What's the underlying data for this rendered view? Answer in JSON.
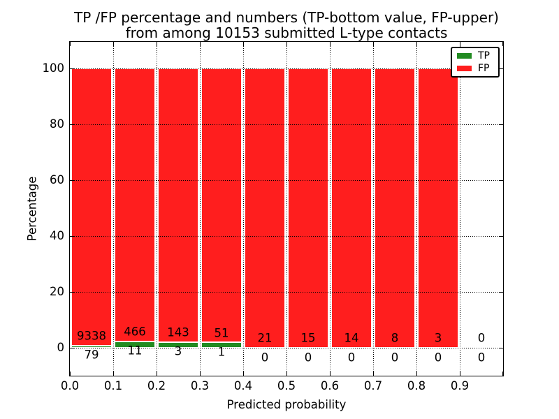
{
  "title": {
    "line1": "TP /FP percentage and numbers (TP-bottom value, FP-upper)",
    "line2": "from among 10153 submitted L-type contacts"
  },
  "axes": {
    "xlabel": "Predicted probability",
    "ylabel": "Percentage",
    "x_tick_labels": [
      "0.0",
      "0.1",
      "0.2",
      "0.3",
      "0.4",
      "0.5",
      "0.6",
      "0.7",
      "0.8",
      "0.9"
    ],
    "y_tick_labels": [
      "0",
      "20",
      "40",
      "60",
      "80",
      "100"
    ]
  },
  "chart_data": {
    "type": "bar",
    "subtype": "stacked-percentage",
    "title": "TP /FP percentage and numbers (TP-bottom value, FP-upper) from among 10153 submitted L-type contacts",
    "xlabel": "Predicted probability",
    "ylabel": "Percentage",
    "total_contacts": 10153,
    "bins": [
      "0.0-0.1",
      "0.1-0.2",
      "0.2-0.3",
      "0.3-0.4",
      "0.4-0.5",
      "0.5-0.6",
      "0.6-0.7",
      "0.7-0.8",
      "0.8-0.9",
      "0.9-1.0"
    ],
    "series": [
      {
        "name": "TP",
        "color": "#228b22",
        "values": [
          79,
          11,
          3,
          1,
          0,
          0,
          0,
          0,
          0,
          0
        ]
      },
      {
        "name": "FP",
        "color": "#ff1e1e",
        "values": [
          9338,
          466,
          143,
          51,
          21,
          15,
          14,
          8,
          3,
          0
        ]
      }
    ],
    "bar_annotation_note": "FP count printed above 0-line inside red bar, TP count printed below 0-line",
    "xlim": [
      0.0,
      1.0
    ],
    "ylim": [
      -10,
      110
    ],
    "y_ticks": [
      0,
      20,
      40,
      60,
      80,
      100
    ],
    "x_ticks": [
      0.0,
      0.1,
      0.2,
      0.3,
      0.4,
      0.5,
      0.6,
      0.7,
      0.8,
      0.9,
      1.0
    ],
    "grid": "dotted black, drawn above bars",
    "legend_position": "upper right",
    "legend": [
      {
        "label": "TP",
        "color": "#228b22"
      },
      {
        "label": "FP",
        "color": "#ff1e1e"
      }
    ]
  }
}
